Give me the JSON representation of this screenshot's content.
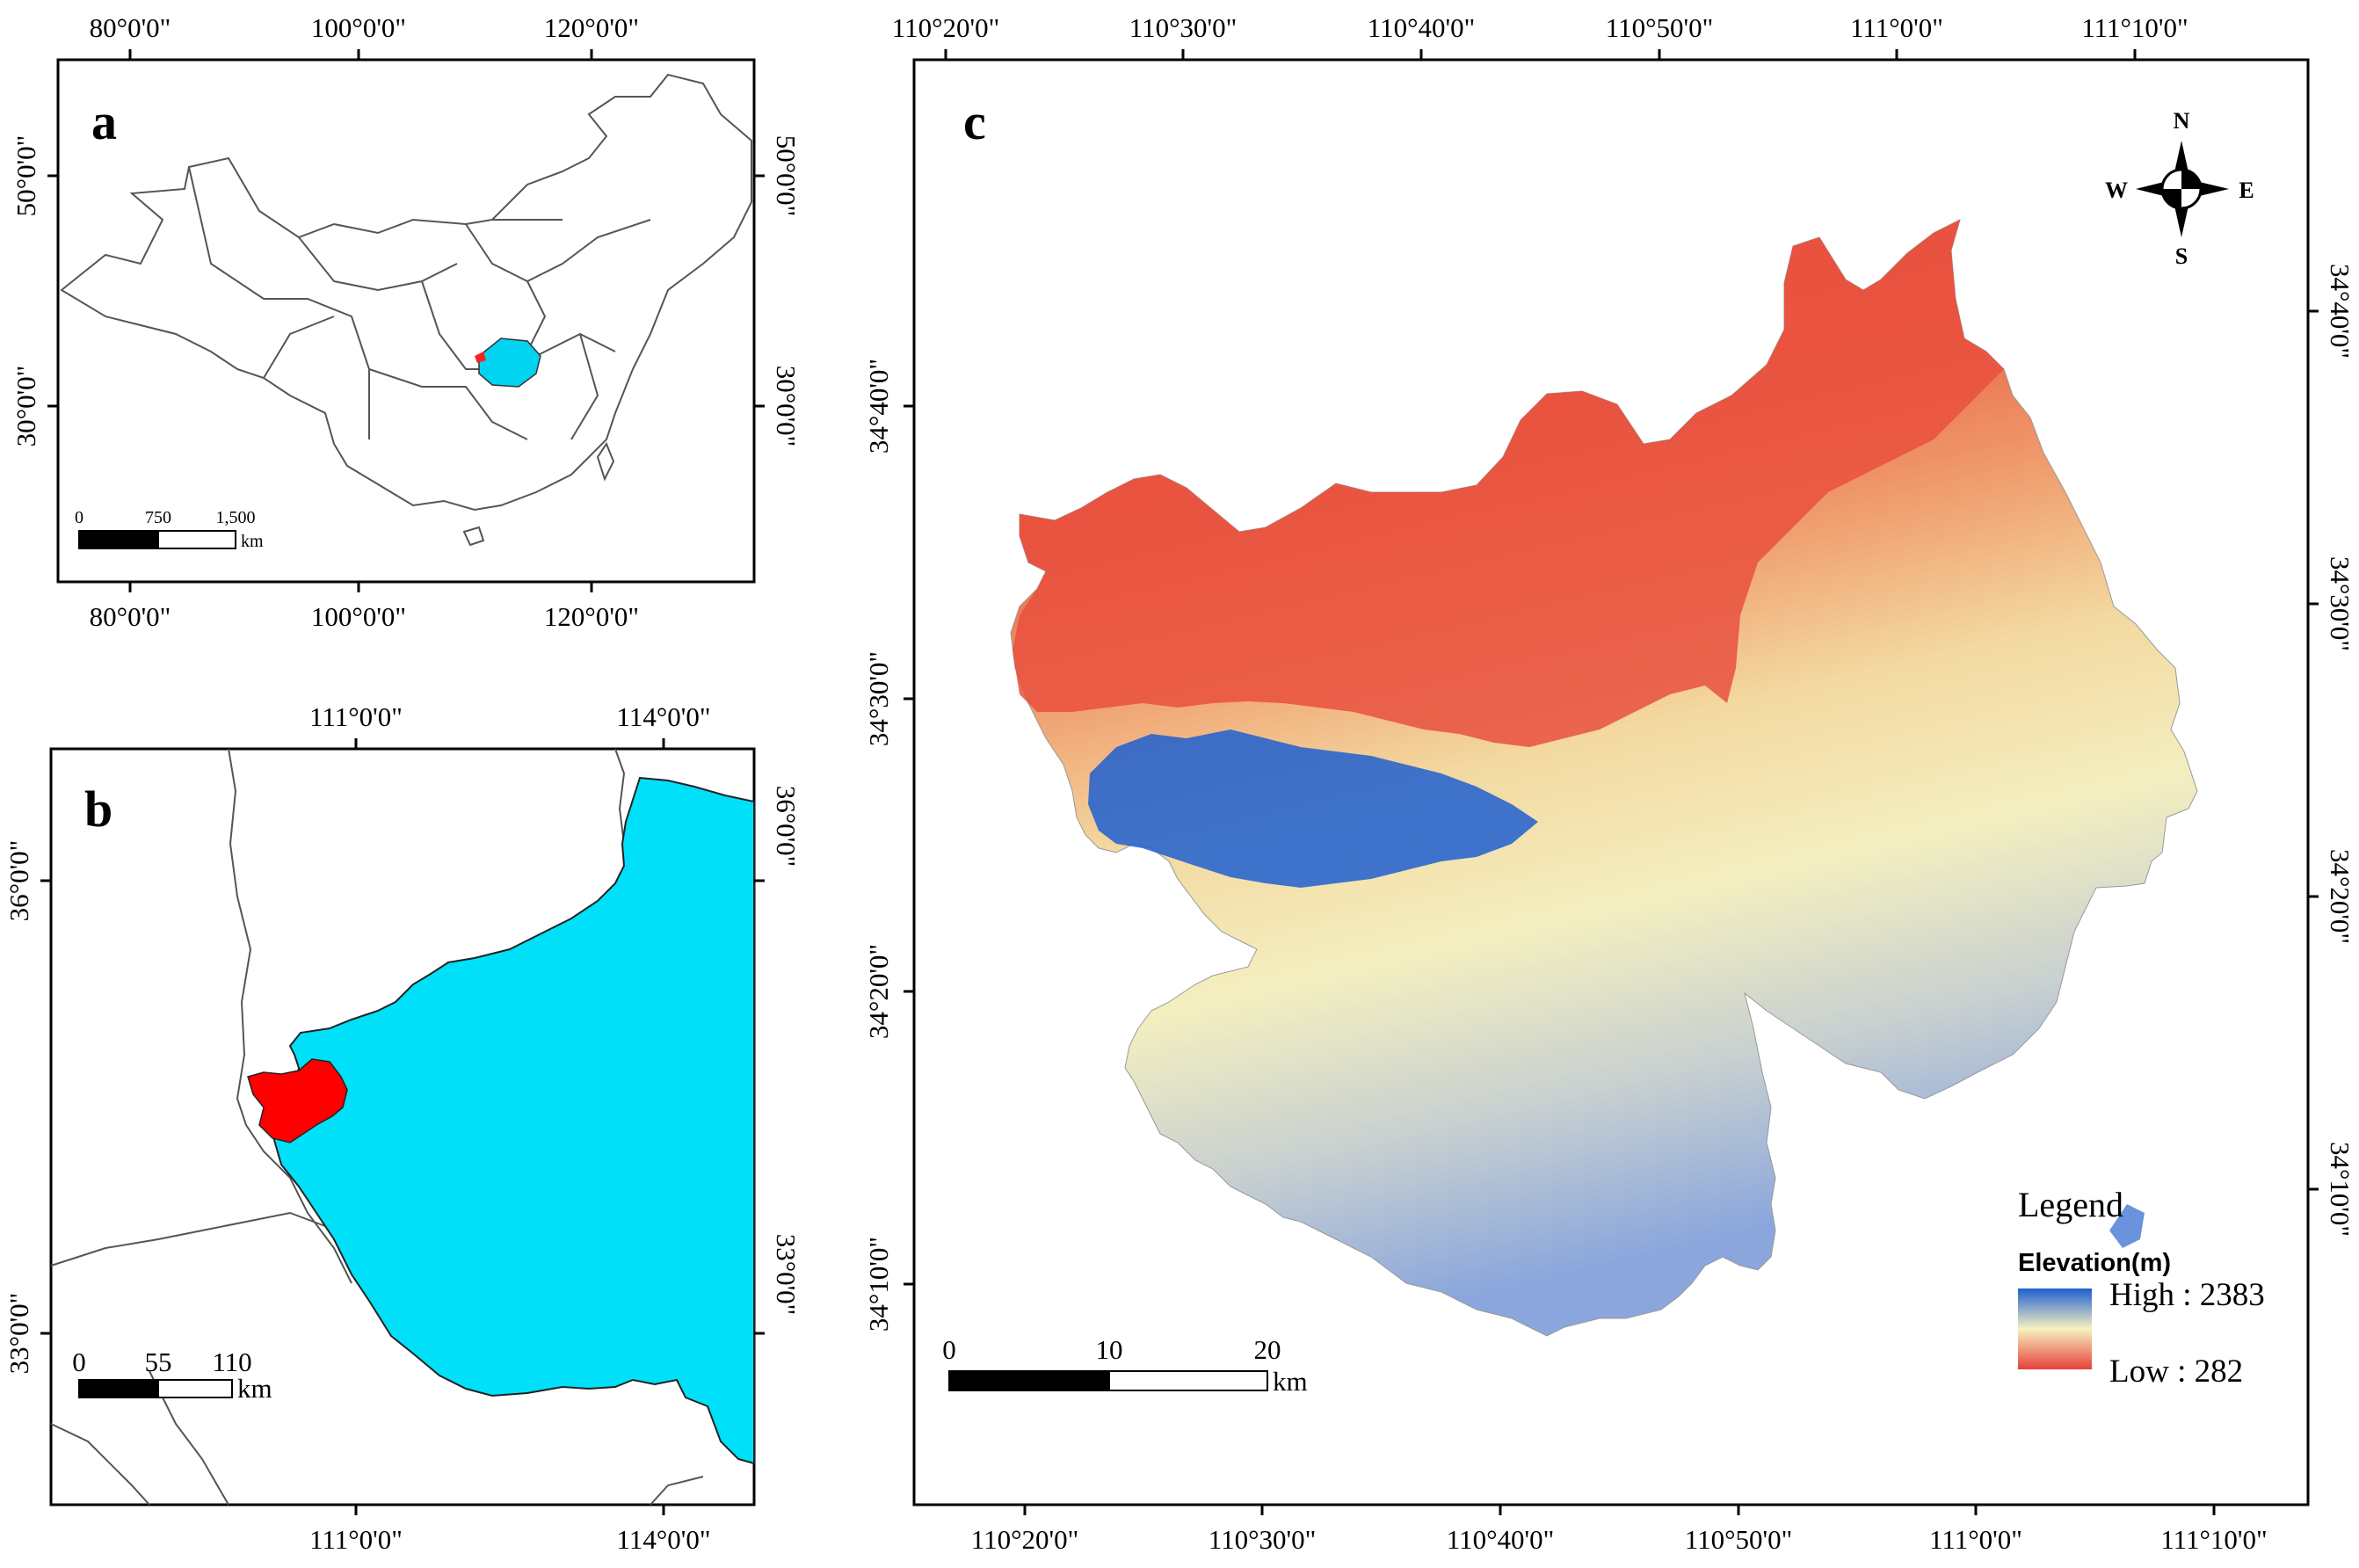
{
  "panels": {
    "a": {
      "label": "a",
      "top_ticks": [
        "80°0'0\"",
        "100°0'0\"",
        "120°0'0\""
      ],
      "bottom_ticks": [
        "80°0'0\"",
        "100°0'0\"",
        "120°0'0\""
      ],
      "left_ticks": [
        "50°0'0\"",
        "30°0'0\""
      ],
      "right_ticks": [
        "50°0'0\"",
        "30°0'0\""
      ],
      "scale": {
        "labels": [
          "0",
          "750",
          "1,500"
        ],
        "unit": "km"
      },
      "colors": {
        "province": "#00d4f0",
        "study_area": "#ff2020"
      }
    },
    "b": {
      "label": "b",
      "top_ticks": [
        "111°0'0\"",
        "114°0'0\""
      ],
      "bottom_ticks": [
        "111°0'0\"",
        "114°0'0\""
      ],
      "left_ticks": [
        "36°0'0\"",
        "33°0'0\""
      ],
      "right_ticks": [
        "36°0'0\"",
        "33°0'0\""
      ],
      "scale": {
        "labels": [
          "0",
          "55",
          "110"
        ],
        "unit": "km"
      },
      "colors": {
        "province": "#00e0f8",
        "study_area": "#ff0000"
      }
    },
    "c": {
      "label": "c",
      "top_ticks": [
        "110°20'0\"",
        "110°30'0\"",
        "110°40'0\"",
        "110°50'0\"",
        "111°0'0\"",
        "111°10'0\""
      ],
      "bottom_ticks": [
        "110°20'0\"",
        "110°30'0\"",
        "110°40'0\"",
        "110°50'0\"",
        "111°0'0\"",
        "111°10'0\""
      ],
      "left_ticks": [
        "34°40'0\"",
        "34°30'0\"",
        "34°20'0\"",
        "34°10'0\""
      ],
      "right_ticks": [
        "34°40'0\"",
        "34°30'0\"",
        "34°20'0\"",
        "34°10'0\""
      ],
      "compass": {
        "n": "N",
        "s": "S",
        "e": "E",
        "w": "W"
      },
      "scale": {
        "labels": [
          "0",
          "10",
          "20"
        ],
        "unit": "km"
      },
      "legend": {
        "title": "Legend",
        "subtitle": "Elevation(m)",
        "high": "High : 2383",
        "low": "Low : 282",
        "colors": {
          "high": "#1f5fd0",
          "mid": "#f7f2c0",
          "low": "#e8403a"
        }
      }
    }
  }
}
